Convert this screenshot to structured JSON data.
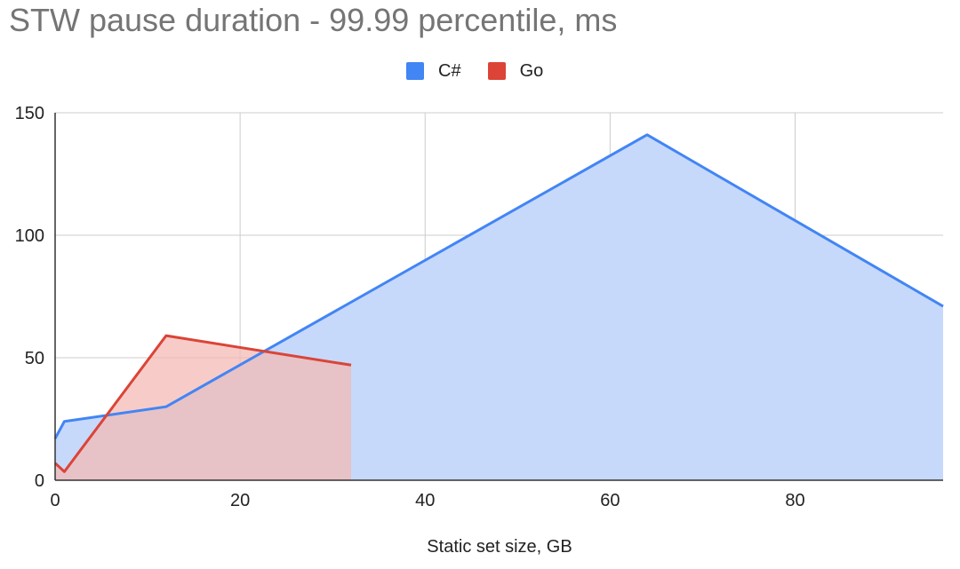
{
  "chart_data": {
    "type": "area",
    "title": "STW pause duration - 99.99 percentile, ms",
    "xlabel": "Static set size, GB",
    "ylabel": "",
    "xlim": [
      0,
      96
    ],
    "ylim": [
      0,
      150
    ],
    "x_ticks": [
      0,
      20,
      40,
      60,
      80
    ],
    "y_ticks": [
      0,
      50,
      100,
      150
    ],
    "grid": true,
    "legend_position": "top-center",
    "series": [
      {
        "name": "C#",
        "color": "#4285f4",
        "fill": "#c6d9fb",
        "points": [
          [
            0,
            17
          ],
          [
            1,
            24
          ],
          [
            12,
            30
          ],
          [
            64,
            141
          ],
          [
            96,
            71
          ]
        ]
      },
      {
        "name": "Go",
        "color": "#db4437",
        "fill": "#f4b9b3",
        "points": [
          [
            0,
            7
          ],
          [
            1,
            3.5
          ],
          [
            12,
            59
          ],
          [
            32,
            47
          ]
        ]
      }
    ]
  }
}
